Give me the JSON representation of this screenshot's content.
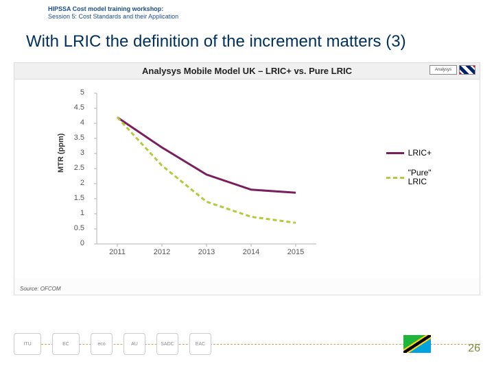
{
  "header": {
    "title": "HIPSSA Cost model training workshop:",
    "subtitle": "Session 5: Cost Standards and their Application"
  },
  "main_title": "With LRIC the definition of the increment matters (3)",
  "chart": {
    "title": "Analysys Mobile Model UK – LRIC+ vs. Pure LRIC",
    "flag_label": "Analysys",
    "type": "line",
    "ylabel": "MTR (ppm)",
    "ylim": [
      0,
      5
    ],
    "ytick_step": 0.5,
    "yticks": [
      "0",
      "0.5",
      "1",
      "1.5",
      "2",
      "2.5",
      "3",
      "3.5",
      "4",
      "4.5",
      "5"
    ],
    "xcategories": [
      "2011",
      "2012",
      "2013",
      "2014",
      "2015"
    ],
    "background_color": "#ffffff",
    "axis_color": "#b0b0b0",
    "tick_fontsize": 11,
    "label_fontsize": 11,
    "title_fontsize": 13,
    "series": [
      {
        "name": "LRIC+",
        "color": "#7a1f5e",
        "dash": "solid",
        "width": 3,
        "values": [
          4.2,
          3.2,
          2.3,
          1.8,
          1.7
        ]
      },
      {
        "name_line1": "\"Pure\"",
        "name_line2": "LRIC",
        "name": "\"Pure\" LRIC",
        "color": "#b5c93a",
        "dash": "6,4",
        "width": 3,
        "values": [
          4.2,
          2.6,
          1.4,
          0.9,
          0.7
        ]
      }
    ],
    "source": "Source: OFCOM"
  },
  "page_number": "26",
  "footer_logos": [
    "ITU",
    "EC",
    "eco",
    "AU",
    "SADC",
    "EAC"
  ]
}
